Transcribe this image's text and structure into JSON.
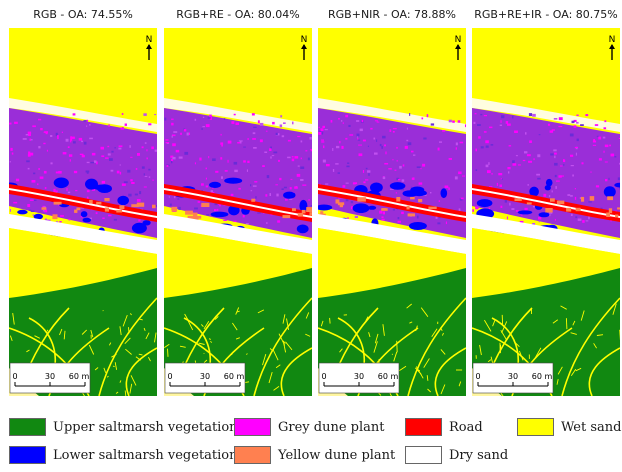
{
  "panels": [
    {
      "title": "RGB - OA: 74.55%"
    },
    {
      "title": "RGB+RE - OA: 80.04%"
    },
    {
      "title": "RGB+NIR - OA: 78.88%"
    },
    {
      "title": "RGB+RE+IR - OA: 80.75%"
    }
  ],
  "north_label": "N",
  "scale_bar": {
    "ticks": [
      "0",
      "30",
      "60 m"
    ]
  },
  "legend": [
    {
      "label": "Upper saltmarsh vegetation",
      "color": "#118811"
    },
    {
      "label": "Grey dune plant",
      "color": "#ff00ff"
    },
    {
      "label": "Road",
      "color": "#ff0000"
    },
    {
      "label": "Wet sand",
      "color": "#ffff00"
    },
    {
      "label": "Lower saltmarsh vegetation",
      "color": "#0000ff"
    },
    {
      "label": "Yellow dune plant",
      "color": "#ff8050"
    },
    {
      "label": "Dry sand",
      "color": "#ffffff"
    }
  ]
}
